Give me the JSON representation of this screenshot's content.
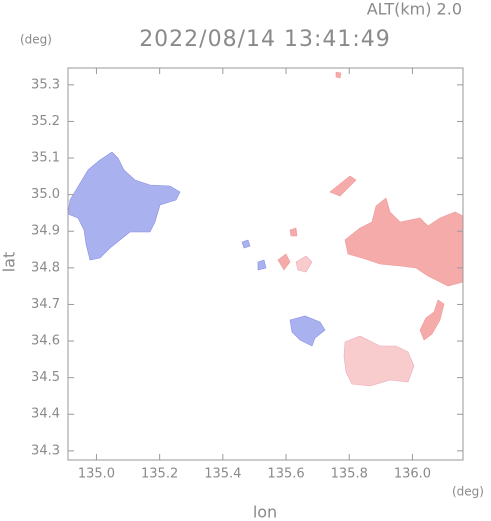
{
  "chart_data": {
    "type": "map",
    "title": "2022/08/14 13:41:49",
    "subtitle": "ALT(km) 2.0",
    "x_label": "lon",
    "x_unit": "(deg)",
    "y_label": "lat",
    "y_unit": "(deg)",
    "xlim": [
      134.91,
      136.16
    ],
    "xticks": [
      {
        "value": 135,
        "label": "135.0"
      },
      135.2,
      135.4,
      135.6,
      135.8,
      {
        "value": 136,
        "label": "136.0"
      }
    ],
    "ylim": [
      34.275,
      35.346
    ],
    "yticks": [
      34.3,
      34.4,
      34.5,
      34.6,
      34.7,
      34.8,
      34.9,
      {
        "value": 35,
        "label": "35.0"
      },
      35.1,
      35.2,
      35.3
    ]
  }
}
